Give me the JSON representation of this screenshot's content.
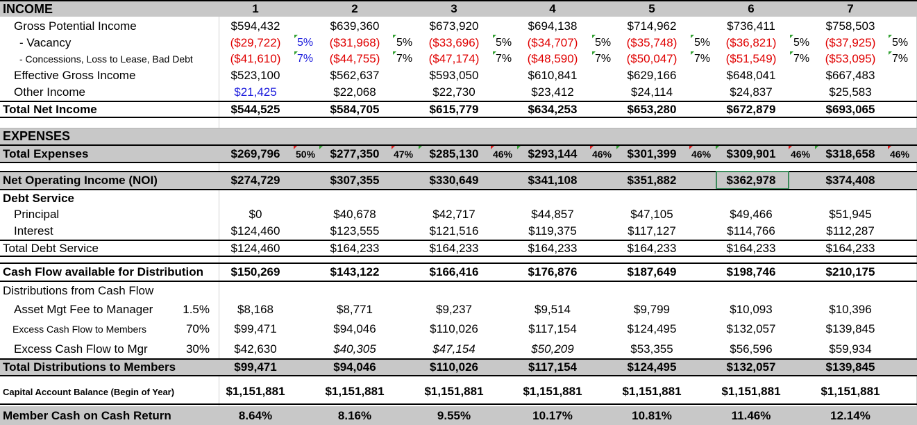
{
  "years": [
    "1",
    "2",
    "3",
    "4",
    "5",
    "6",
    "7"
  ],
  "income_header": "INCOME",
  "gpi": {
    "label": "Gross Potential Income",
    "values": [
      "$594,432",
      "$639,360",
      "$673,920",
      "$694,138",
      "$714,962",
      "$736,411",
      "$758,503"
    ]
  },
  "vacancy": {
    "label": "- Vacancy",
    "values": [
      "($29,722)",
      "($31,968)",
      "($33,696)",
      "($34,707)",
      "($35,748)",
      "($36,821)",
      "($37,925)"
    ],
    "pcts": [
      "5%",
      "5%",
      "5%",
      "5%",
      "5%",
      "5%",
      "5%"
    ]
  },
  "concessions": {
    "label": "- Concessions, Loss to Lease, Bad Debt",
    "values": [
      "($41,610)",
      "($44,755)",
      "($47,174)",
      "($48,590)",
      "($50,047)",
      "($51,549)",
      "($53,095)"
    ],
    "pcts": [
      "7%",
      "7%",
      "7%",
      "7%",
      "7%",
      "7%",
      "7%"
    ]
  },
  "egi": {
    "label": "Effective Gross Income",
    "values": [
      "$523,100",
      "$562,637",
      "$593,050",
      "$610,841",
      "$629,166",
      "$648,041",
      "$667,483"
    ]
  },
  "other_income": {
    "label": "Other Income",
    "values": [
      "$21,425",
      "$22,068",
      "$22,730",
      "$23,412",
      "$24,114",
      "$24,837",
      "$25,583"
    ]
  },
  "tni": {
    "label": "Total Net Income",
    "values": [
      "$544,525",
      "$584,705",
      "$615,779",
      "$634,253",
      "$653,280",
      "$672,879",
      "$693,065"
    ]
  },
  "expenses_header": "EXPENSES",
  "total_expenses": {
    "label": "Total Expenses",
    "values": [
      "$269,796",
      "$277,350",
      "$285,130",
      "$293,144",
      "$301,399",
      "$309,901",
      "$318,658"
    ],
    "pcts": [
      "50%",
      "47%",
      "46%",
      "46%",
      "46%",
      "46%",
      "46%"
    ]
  },
  "noi": {
    "label": "Net Operating Income (NOI)",
    "values": [
      "$274,729",
      "$307,355",
      "$330,649",
      "$341,108",
      "$351,882",
      "$362,978",
      "$374,408"
    ]
  },
  "debt_header": "Debt Service",
  "principal": {
    "label": "Principal",
    "values": [
      "$0",
      "$40,678",
      "$42,717",
      "$44,857",
      "$47,105",
      "$49,466",
      "$51,945"
    ]
  },
  "interest": {
    "label": "Interest",
    "values": [
      "$124,460",
      "$123,555",
      "$121,516",
      "$119,375",
      "$117,127",
      "$114,766",
      "$112,287"
    ]
  },
  "tds": {
    "label": "Total Debt Service",
    "values": [
      "$124,460",
      "$164,233",
      "$164,233",
      "$164,233",
      "$164,233",
      "$164,233",
      "$164,233"
    ]
  },
  "cfad": {
    "label": "Cash Flow available for Distribution",
    "values": [
      "$150,269",
      "$143,122",
      "$166,416",
      "$176,876",
      "$187,649",
      "$198,746",
      "$210,175"
    ]
  },
  "dist_header": "Distributions from Cash Flow",
  "asset_fee": {
    "label": "Asset Mgt Fee to Manager",
    "rate": "1.5%",
    "values": [
      "$8,168",
      "$8,771",
      "$9,237",
      "$9,514",
      "$9,799",
      "$10,093",
      "$10,396"
    ]
  },
  "excess_members": {
    "label": "Excess Cash Flow to Members",
    "rate": "70%",
    "values": [
      "$99,471",
      "$94,046",
      "$110,026",
      "$117,154",
      "$124,495",
      "$132,057",
      "$139,845"
    ]
  },
  "excess_mgr": {
    "label": "Excess Cash Flow to Mgr",
    "rate": "30%",
    "values": [
      "$42,630",
      "$40,305",
      "$47,154",
      "$50,209",
      "$53,355",
      "$56,596",
      "$59,934"
    ]
  },
  "tdm": {
    "label": "Total Distributions to Members",
    "values": [
      "$99,471",
      "$94,046",
      "$110,026",
      "$117,154",
      "$124,495",
      "$132,057",
      "$139,845"
    ]
  },
  "cab": {
    "label": "Capital Account Balance (Begin of Year)",
    "values": [
      "$1,151,881",
      "$1,151,881",
      "$1,151,881",
      "$1,151,881",
      "$1,151,881",
      "$1,151,881",
      "$1,151,881"
    ]
  },
  "mcoc": {
    "label": "Member Cash on Cash Return",
    "values": [
      "8.64%",
      "8.16%",
      "9.55%",
      "10.17%",
      "10.81%",
      "11.46%",
      "12.14%"
    ]
  },
  "colors": {
    "negative": "#e00000",
    "input_blue": "#1a1adc",
    "header_gray": "#c8c8c8",
    "selection": "#3a8a5a"
  }
}
